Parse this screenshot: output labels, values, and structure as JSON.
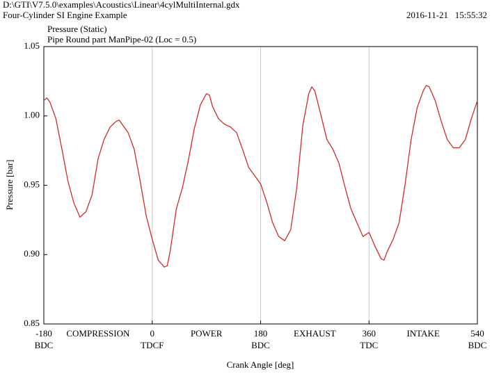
{
  "chart_data": {
    "type": "line",
    "file_path": "D:\\GTI\\V7.5.0\\examples\\Acoustics\\Linear\\4cylMultiInternal.gdx",
    "model_name": "Four-Cylinder SI Engine Example",
    "timestamp": "2016-11-21   15:55:32",
    "title": "Pressure (Static)",
    "subtitle": "Pipe Round part ManPipe-02 (Loc = 0.5)",
    "x_label": "Crank Angle [deg]",
    "y_label": "Pressure [bar]",
    "xlim": [
      -180,
      540
    ],
    "ylim": [
      0.85,
      1.05
    ],
    "xticks": [
      -180,
      0,
      180,
      360,
      540
    ],
    "xtick_sublabels": [
      "BDC",
      "TDCF",
      "BDC",
      "TDC",
      "BDC"
    ],
    "yticks": [
      0.85,
      {
        "value": 0.9,
        "label": "0.90"
      },
      0.95,
      {
        "value": 1.0,
        "label": "1.00"
      },
      1.05
    ],
    "grid_x": [
      0,
      180,
      360
    ],
    "phase_labels": [
      {
        "x": -90,
        "label": "COMPRESSION"
      },
      {
        "x": 90,
        "label": "POWER"
      },
      {
        "x": 270,
        "label": "EXHAUST"
      },
      {
        "x": 450,
        "label": "INTAKE"
      }
    ],
    "x": [
      -180,
      -175,
      -170,
      -160,
      -150,
      -140,
      -130,
      -120,
      -110,
      -100,
      -90,
      -80,
      -70,
      -60,
      -55,
      -50,
      -40,
      -30,
      -20,
      -10,
      0,
      10,
      20,
      25,
      30,
      40,
      50,
      60,
      70,
      80,
      90,
      95,
      100,
      110,
      120,
      130,
      140,
      150,
      160,
      170,
      180,
      190,
      200,
      210,
      220,
      230,
      240,
      250,
      260,
      265,
      270,
      280,
      290,
      300,
      310,
      320,
      330,
      340,
      350,
      360,
      370,
      380,
      385,
      390,
      400,
      410,
      420,
      430,
      440,
      450,
      455,
      460,
      470,
      480,
      490,
      500,
      510,
      520,
      530,
      540
    ],
    "series": [
      {
        "color": "#cc2b2b",
        "values": [
          1.011,
          1.013,
          1.01,
          0.998,
          0.976,
          0.953,
          0.937,
          0.927,
          0.931,
          0.943,
          0.969,
          0.983,
          0.992,
          0.996,
          0.997,
          0.994,
          0.988,
          0.976,
          0.953,
          0.928,
          0.911,
          0.896,
          0.891,
          0.892,
          0.903,
          0.933,
          0.948,
          0.968,
          0.991,
          1.008,
          1.016,
          1.015,
          1.007,
          0.998,
          0.994,
          0.992,
          0.988,
          0.976,
          0.963,
          0.957,
          0.951,
          0.938,
          0.923,
          0.913,
          0.91,
          0.918,
          0.948,
          0.993,
          1.016,
          1.021,
          1.018,
          1.001,
          0.983,
          0.976,
          0.966,
          0.949,
          0.933,
          0.923,
          0.913,
          0.916,
          0.906,
          0.897,
          0.896,
          0.902,
          0.911,
          0.923,
          0.951,
          0.983,
          1.006,
          1.018,
          1.022,
          1.021,
          1.011,
          0.996,
          0.983,
          0.977,
          0.977,
          0.983,
          0.998,
          1.011
        ]
      }
    ]
  }
}
